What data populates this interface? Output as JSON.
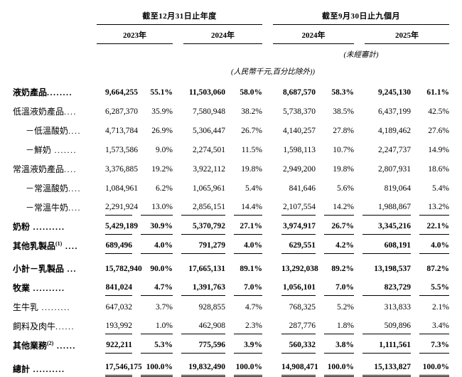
{
  "header": {
    "group_fy": "截至12月31日止年度",
    "group_9m": "截至9月30日止九個月",
    "years": [
      "2023年",
      "2024年",
      "2024年",
      "2025年"
    ],
    "unaudited_note": "(未經審計)",
    "unit_note": "(人民幣千元,百分比除外))"
  },
  "table": {
    "columns": [
      "2023年金額",
      "2023年%",
      "2024年金額",
      "2024年%",
      "截至2024年9月30日止九個月金額",
      "截至2024年9月30日止九個月%",
      "截至2025年9月30日止九個月金額",
      "截至2025年9月30日止九個月%"
    ],
    "rows": [
      {
        "label": "液奶產品",
        "sup": "",
        "leader": "........",
        "indent": 0,
        "bold": true,
        "rule": "none",
        "space_before": false,
        "values": [
          "9,664,255",
          "55.1%",
          "11,503,060",
          "58.0%",
          "8,687,570",
          "58.3%",
          "9,245,130",
          "61.1%"
        ]
      },
      {
        "label": "低溫液奶產品",
        "sup": "",
        "leader": "....",
        "indent": 0,
        "bold": false,
        "rule": "none",
        "space_before": false,
        "values": [
          "6,287,370",
          "35.9%",
          "7,580,948",
          "38.2%",
          "5,738,370",
          "38.5%",
          "6,437,199",
          "42.5%"
        ]
      },
      {
        "label": "－低溫酸奶",
        "sup": "",
        "leader": "....",
        "indent": 1,
        "bold": false,
        "rule": "none",
        "space_before": false,
        "values": [
          "4,713,784",
          "26.9%",
          "5,306,447",
          "26.7%",
          "4,140,257",
          "27.8%",
          "4,189,462",
          "27.6%"
        ]
      },
      {
        "label": "－鮮奶",
        "sup": "",
        "leader": " .......",
        "indent": 1,
        "bold": false,
        "rule": "none",
        "space_before": false,
        "values": [
          "1,573,586",
          "9.0%",
          "2,274,501",
          "11.5%",
          "1,598,113",
          "10.7%",
          "2,247,737",
          "14.9%"
        ]
      },
      {
        "label": "常溫液奶產品",
        "sup": "",
        "leader": "....",
        "indent": 0,
        "bold": false,
        "rule": "none",
        "space_before": false,
        "values": [
          "3,376,885",
          "19.2%",
          "3,922,112",
          "19.8%",
          "2,949,200",
          "19.8%",
          "2,807,931",
          "18.6%"
        ]
      },
      {
        "label": "－常溫酸奶",
        "sup": "",
        "leader": "....",
        "indent": 1,
        "bold": false,
        "rule": "none",
        "space_before": false,
        "values": [
          "1,084,961",
          "6.2%",
          "1,065,961",
          "5.4%",
          "841,646",
          "5.6%",
          "819,064",
          "5.4%"
        ]
      },
      {
        "label": "－常溫牛奶",
        "sup": "",
        "leader": "....",
        "indent": 1,
        "bold": false,
        "rule": "single",
        "space_before": false,
        "values": [
          "2,291,924",
          "13.0%",
          "2,856,151",
          "14.4%",
          "2,107,554",
          "14.2%",
          "1,988,867",
          "13.2%"
        ]
      },
      {
        "label": "奶粉",
        "sup": "",
        "leader": " ..........",
        "indent": 0,
        "bold": true,
        "rule": "single",
        "space_before": false,
        "values": [
          "5,429,189",
          "30.9%",
          "5,370,792",
          "27.1%",
          "3,974,917",
          "26.7%",
          "3,345,216",
          "22.1%"
        ]
      },
      {
        "label": "其他乳製品",
        "sup": "(1)",
        "leader": " ....",
        "indent": 0,
        "bold": true,
        "rule": "single",
        "space_before": false,
        "values": [
          "689,496",
          "4.0%",
          "791,279",
          "4.0%",
          "629,551",
          "4.2%",
          "608,191",
          "4.0%"
        ]
      },
      {
        "label": "小計－乳製品",
        "sup": "",
        "leader": " ...",
        "indent": 0,
        "bold": true,
        "rule": "none",
        "space_before": true,
        "values": [
          "15,782,940",
          "90.0%",
          "17,665,131",
          "89.1%",
          "13,292,038",
          "89.2%",
          "13,198,537",
          "87.2%"
        ]
      },
      {
        "label": "牧業",
        "sup": "",
        "leader": " ..........",
        "indent": 0,
        "bold": true,
        "rule": "single",
        "space_before": false,
        "values": [
          "841,024",
          "4.7%",
          "1,391,763",
          "7.0%",
          "1,056,101",
          "7.0%",
          "823,729",
          "5.5%"
        ]
      },
      {
        "label": "生牛乳",
        "sup": "",
        "leader": " .........",
        "indent": 0,
        "bold": false,
        "rule": "none",
        "space_before": false,
        "values": [
          "647,032",
          "3.7%",
          "928,855",
          "4.7%",
          "768,325",
          "5.2%",
          "313,833",
          "2.1%"
        ]
      },
      {
        "label": "飼料及肉牛",
        "sup": "",
        "leader": "......",
        "indent": 0,
        "bold": false,
        "rule": "single",
        "space_before": false,
        "values": [
          "193,992",
          "1.0%",
          "462,908",
          "2.3%",
          "287,776",
          "1.8%",
          "509,896",
          "3.4%"
        ]
      },
      {
        "label": "其他業務",
        "sup": "(2)",
        "leader": " ......",
        "indent": 0,
        "bold": true,
        "rule": "single",
        "space_before": false,
        "values": [
          "922,211",
          "5.3%",
          "775,596",
          "3.9%",
          "560,332",
          "3.8%",
          "1,111,561",
          "7.3%"
        ]
      },
      {
        "label": "總計",
        "sup": "",
        "leader": " ..........",
        "indent": 0,
        "bold": true,
        "rule": "double",
        "space_before": true,
        "values": [
          "17,546,175",
          "100.0%",
          "19,832,490",
          "100.0%",
          "14,908,471",
          "100.0%",
          "15,133,827",
          "100.0%"
        ]
      }
    ]
  }
}
